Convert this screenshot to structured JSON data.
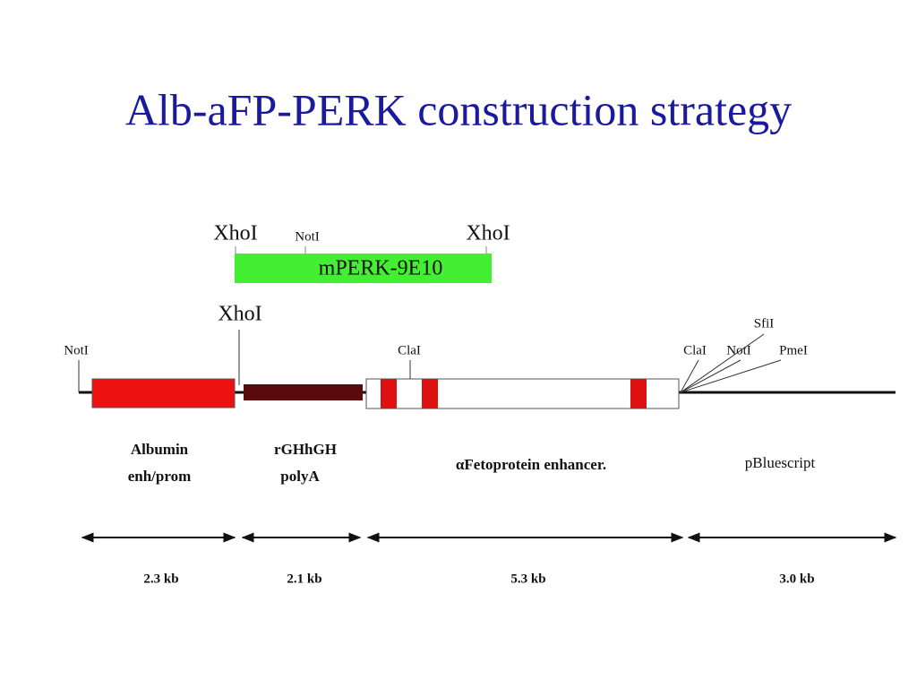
{
  "title": "Alb-aFP-PERK construction strategy",
  "insert": {
    "sites": [
      "XhoI",
      "NotI",
      "XhoI"
    ],
    "label": "mPERK-9E10"
  },
  "construct": {
    "sites": [
      "NotI",
      "XhoI",
      "ClaI",
      "ClaI",
      "NotI",
      "SfiI",
      "PmeI"
    ],
    "segments": [
      {
        "label": [
          "Albumin",
          "enh/prom"
        ],
        "size": "2.3 kb"
      },
      {
        "label": [
          "rGHhGH",
          "polyA"
        ],
        "size": "2.1 kb"
      },
      {
        "label": [
          "αFetoprotein enhancer."
        ],
        "size": "5.3 kb"
      },
      {
        "label": [
          "pBluescript"
        ],
        "size": "3.0 kb"
      }
    ]
  }
}
